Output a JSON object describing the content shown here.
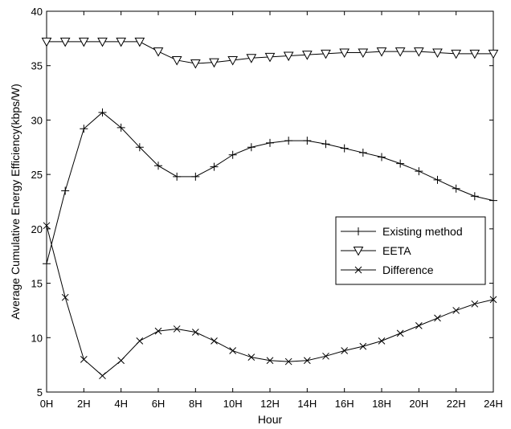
{
  "chart_data": {
    "type": "line",
    "title": "",
    "xlabel": "Hour",
    "ylabel": "Average Cumulative Energy Efficiency(kbps/W)",
    "x": [
      0,
      1,
      2,
      3,
      4,
      5,
      6,
      7,
      8,
      9,
      10,
      11,
      12,
      13,
      14,
      15,
      16,
      17,
      18,
      19,
      20,
      21,
      22,
      23,
      24
    ],
    "xlim": [
      0,
      24
    ],
    "ylim": [
      5,
      40
    ],
    "xticks": [
      0,
      2,
      4,
      6,
      8,
      10,
      12,
      14,
      16,
      18,
      20,
      22,
      24
    ],
    "xtick_labels": [
      "0H",
      "2H",
      "4H",
      "6H",
      "8H",
      "10H",
      "12H",
      "14H",
      "16H",
      "18H",
      "20H",
      "22H",
      "24H"
    ],
    "yticks": [
      5,
      10,
      15,
      20,
      25,
      30,
      35,
      40
    ],
    "ytick_labels": [
      "5",
      "10",
      "15",
      "20",
      "25",
      "30",
      "35",
      "40"
    ],
    "grid": false,
    "legend_position": "right",
    "series": [
      {
        "name": "Existing method",
        "marker": "plus",
        "values": [
          16.8,
          23.5,
          29.2,
          30.7,
          29.3,
          27.5,
          25.8,
          24.8,
          24.8,
          25.7,
          26.8,
          27.5,
          27.9,
          28.1,
          28.1,
          27.8,
          27.4,
          27.0,
          26.6,
          26.0,
          25.3,
          24.5,
          23.7,
          23.0,
          22.6
        ]
      },
      {
        "name": "EETA",
        "marker": "triangle-down",
        "values": [
          37.2,
          37.2,
          37.2,
          37.2,
          37.2,
          37.2,
          36.3,
          35.5,
          35.2,
          35.3,
          35.5,
          35.7,
          35.8,
          35.9,
          36.0,
          36.1,
          36.2,
          36.2,
          36.3,
          36.3,
          36.3,
          36.2,
          36.1,
          36.1,
          36.1
        ]
      },
      {
        "name": "Difference",
        "marker": "x",
        "values": [
          20.3,
          13.7,
          8.0,
          6.5,
          7.9,
          9.7,
          10.6,
          10.8,
          10.5,
          9.7,
          8.8,
          8.2,
          7.9,
          7.8,
          7.9,
          8.3,
          8.8,
          9.2,
          9.7,
          10.4,
          11.1,
          11.8,
          12.5,
          13.1,
          13.5
        ]
      }
    ]
  }
}
